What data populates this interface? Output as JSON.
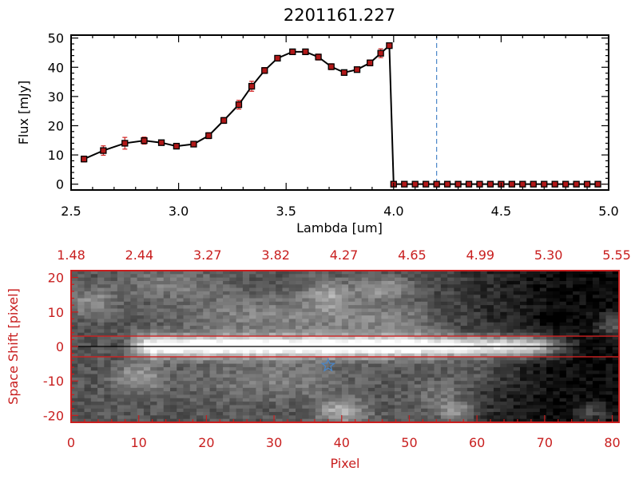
{
  "chart_data": [
    {
      "type": "line",
      "title": "2201161.227",
      "xlabel": "Lambda [um]",
      "ylabel": "Flux [mJy]",
      "xlim": [
        2.5,
        5.0
      ],
      "ylim": [
        -2,
        51
      ],
      "xticks": [
        "2.5",
        "3.0",
        "3.5",
        "4.0",
        "4.5",
        "5.0"
      ],
      "yticks": [
        "0",
        "10",
        "20",
        "30",
        "40",
        "50"
      ],
      "grid": false,
      "reference_line": {
        "x": 4.2,
        "style": "dashed",
        "color": "#4a86c8"
      },
      "series": [
        {
          "line_color": "#000000",
          "marker_color": "#b01818",
          "errorbar_color": "#d02020",
          "x": [
            2.56,
            2.65,
            2.75,
            2.84,
            2.92,
            2.99,
            3.07,
            3.14,
            3.21,
            3.28,
            3.34,
            3.4,
            3.46,
            3.53,
            3.59,
            3.65,
            3.71,
            3.77,
            3.83,
            3.89,
            3.94,
            4.0,
            4.05,
            4.1,
            4.15,
            4.2,
            4.25,
            4.3,
            4.35,
            4.4,
            4.45,
            4.5,
            4.55,
            4.6,
            4.65,
            4.7,
            4.75,
            4.8,
            4.85,
            4.9,
            4.95
          ],
          "y": [
            8.6,
            11.5,
            14.0,
            14.9,
            14.2,
            13.0,
            13.7,
            16.6,
            21.8,
            27.2,
            33.5,
            38.9,
            43.1,
            45.3,
            45.3,
            43.5,
            40.2,
            38.2,
            39.2,
            41.5,
            44.8,
            0,
            0,
            0,
            0,
            0,
            0,
            0,
            0,
            0,
            0,
            0,
            0,
            0,
            0,
            0,
            0,
            0,
            0,
            0,
            0
          ],
          "extra_point": {
            "x": 3.98,
            "y": 47.4
          },
          "yerr": [
            1.0,
            1.6,
            2.0,
            1.2,
            0.8,
            0.8,
            0.8,
            1.0,
            1.0,
            1.5,
            1.7,
            1.0,
            0.8,
            0.8,
            0.8,
            1.0,
            1.0,
            0.8,
            0.8,
            1.0,
            1.5,
            0,
            0,
            0,
            0,
            0,
            0,
            0,
            0,
            0,
            0,
            0,
            0,
            0,
            0,
            0,
            0,
            0,
            0,
            0,
            0
          ]
        }
      ]
    },
    {
      "type": "heatmap",
      "xlabel": "Pixel",
      "ylabel": "Space Shift [pixel]",
      "xlim": [
        0,
        81
      ],
      "ylim": [
        -22,
        22
      ],
      "xticks": [
        "0",
        "10",
        "20",
        "30",
        "40",
        "50",
        "60",
        "70",
        "80"
      ],
      "yticks": [
        "-20",
        "-10",
        "0",
        "10",
        "20"
      ],
      "top_axis_ticks": [
        "1.48",
        "2.44",
        "3.27",
        "3.82",
        "4.27",
        "4.65",
        "4.99",
        "5.30",
        "5.55"
      ],
      "axis_color": "#c81e1e",
      "colormap": "grayscale",
      "aperture_lines_y": [
        3,
        -3
      ],
      "aperture_line_color": "#d02020",
      "center_line_y": 0,
      "star_marker": {
        "x": 38,
        "y": -5.5,
        "color": "#4a86c8"
      }
    }
  ]
}
